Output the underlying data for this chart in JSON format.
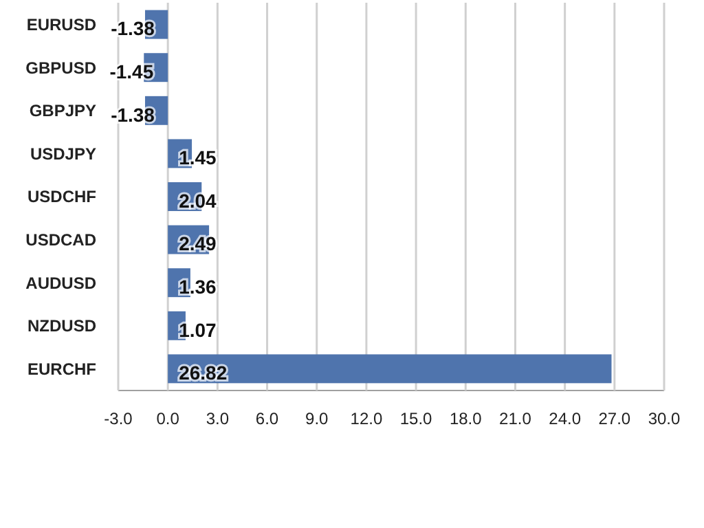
{
  "chart_data": {
    "type": "bar",
    "orientation": "horizontal",
    "categories": [
      "EURUSD",
      "GBPUSD",
      "GBPJPY",
      "USDJPY",
      "USDCHF",
      "USDCAD",
      "AUDUSD",
      "NZDUSD",
      "EURCHF"
    ],
    "values": [
      -1.38,
      -1.45,
      -1.38,
      1.45,
      2.04,
      2.49,
      1.36,
      1.07,
      26.82
    ],
    "color": "#4f74ad",
    "data_labels": true,
    "grid": "x",
    "xlim": [
      -3,
      30
    ],
    "xticks": [
      {
        "value": -3,
        "label": "-3.0"
      },
      {
        "value": 0,
        "label": "0.0"
      },
      {
        "value": 3,
        "label": "3.0"
      },
      {
        "value": 6,
        "label": "6.0"
      },
      {
        "value": 9,
        "label": "9.0"
      },
      {
        "value": 12,
        "label": "12.0"
      },
      {
        "value": 15,
        "label": "15.0"
      },
      {
        "value": 18,
        "label": "18.0"
      },
      {
        "value": 21,
        "label": "21.0"
      },
      {
        "value": 24,
        "label": "24.0"
      },
      {
        "value": 27,
        "label": "27.0"
      },
      {
        "value": 30,
        "label": "30.0"
      }
    ]
  }
}
